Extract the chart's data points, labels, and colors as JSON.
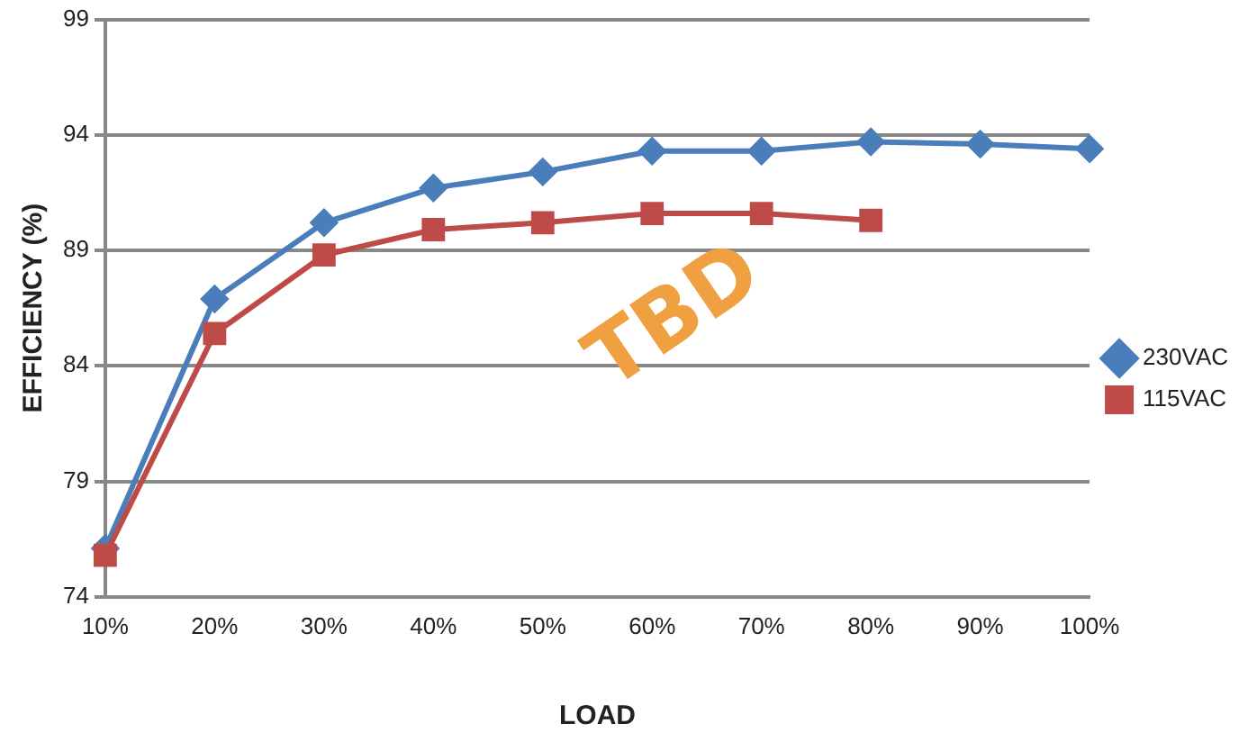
{
  "chart_data": {
    "type": "line",
    "xlabel": "LOAD",
    "ylabel": "EFFICIENCY (%)",
    "categories": [
      "10%",
      "20%",
      "30%",
      "40%",
      "50%",
      "60%",
      "70%",
      "80%",
      "90%",
      "100%"
    ],
    "series": [
      {
        "name": "230VAC",
        "color": "#4a7ebb",
        "marker": "diamond",
        "values": [
          76.1,
          86.9,
          90.2,
          91.7,
          92.4,
          93.3,
          93.3,
          93.7,
          93.6,
          93.4
        ]
      },
      {
        "name": "115VAC",
        "color": "#be4b48",
        "marker": "square",
        "values": [
          75.8,
          85.4,
          88.8,
          89.9,
          90.2,
          90.6,
          90.6,
          90.3,
          null,
          null
        ]
      }
    ],
    "ylim": [
      74,
      99
    ],
    "yticks": [
      74,
      79,
      84,
      89,
      94,
      99
    ],
    "grid": "y",
    "legend": "right",
    "annotations": [
      "TBD"
    ]
  }
}
